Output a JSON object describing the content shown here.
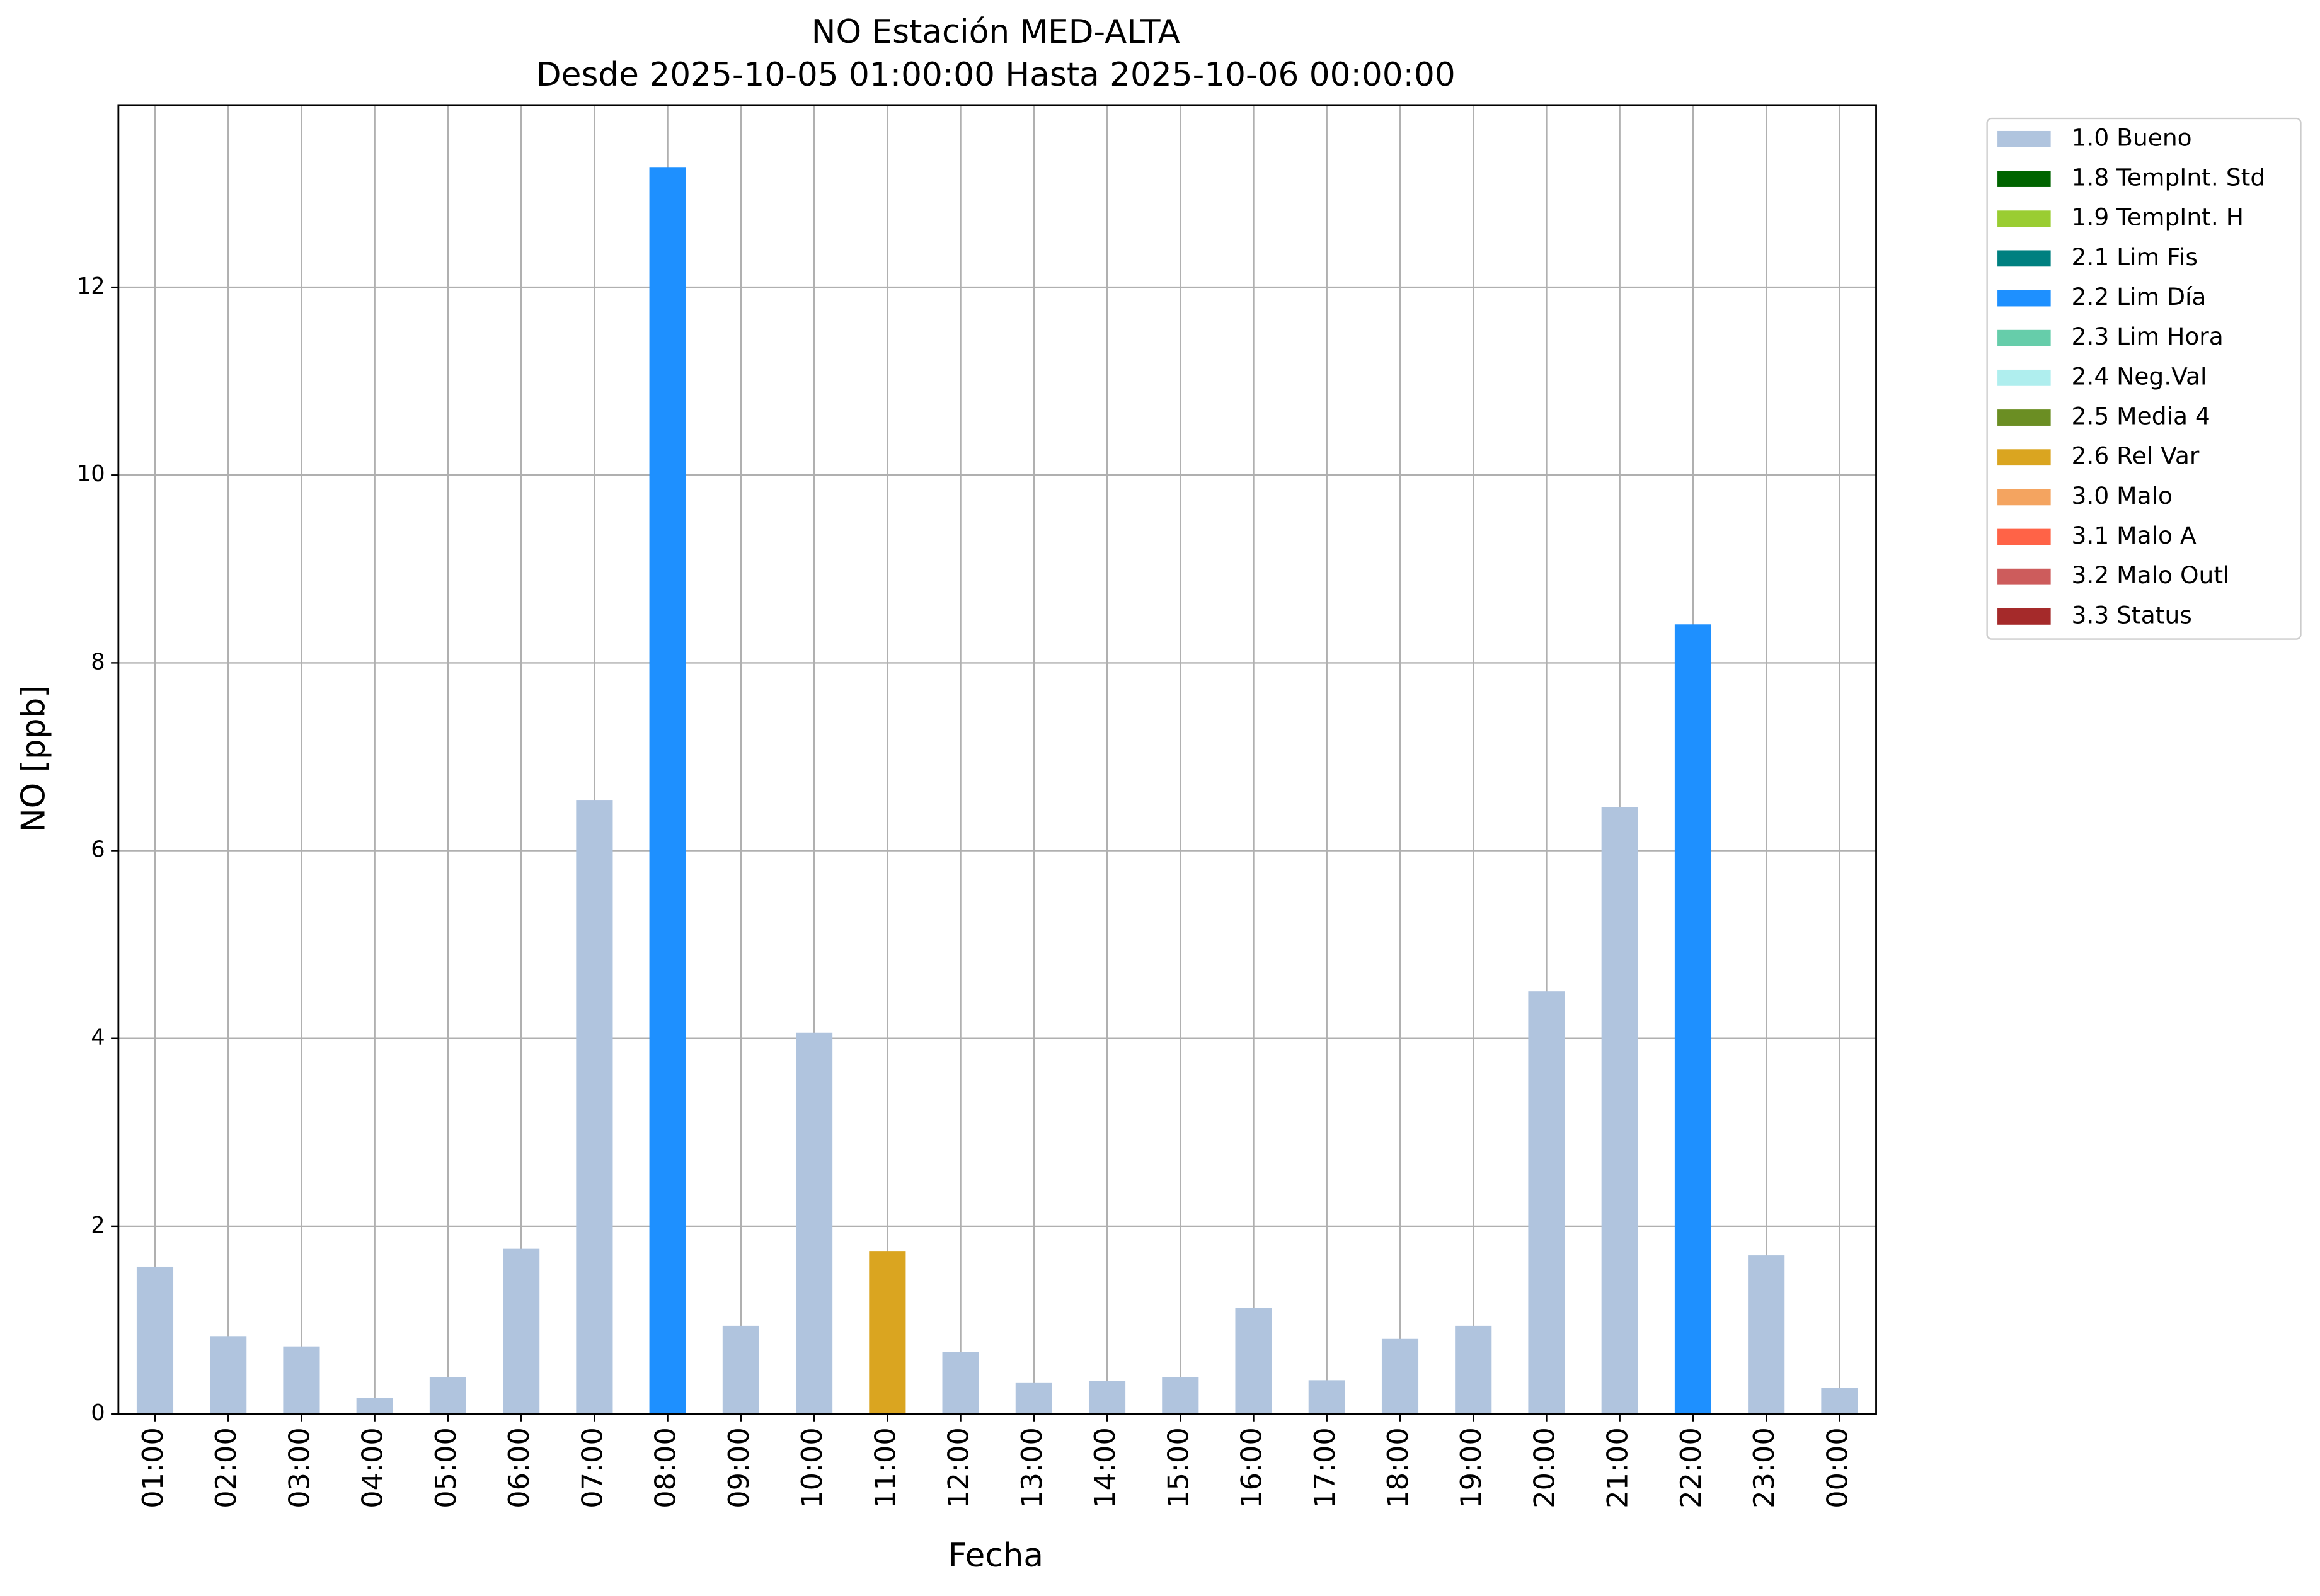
{
  "chart_data": {
    "type": "bar",
    "stacked": true,
    "title": "NO Estación MED-ALTA",
    "subtitle": "Desde 2025-10-05 01:00:00 Hasta 2025-10-06 00:00:00",
    "x_label": "Fecha",
    "y_label": "NO [ppb]",
    "categories": [
      "01:00",
      "02:00",
      "03:00",
      "04:00",
      "05:00",
      "06:00",
      "07:00",
      "08:00",
      "09:00",
      "10:00",
      "11:00",
      "12:00",
      "13:00",
      "14:00",
      "15:00",
      "16:00",
      "17:00",
      "18:00",
      "19:00",
      "20:00",
      "21:00",
      "22:00",
      "23:00",
      "00:00"
    ],
    "series": [
      {
        "name": "1.0 Bueno",
        "color": "#b0c4de",
        "values": [
          1.57,
          0.83,
          0.72,
          0.17,
          0.39,
          1.76,
          6.54,
          null,
          0.94,
          4.06,
          null,
          0.66,
          0.33,
          0.35,
          0.39,
          1.13,
          0.36,
          0.8,
          0.94,
          4.5,
          6.46,
          null,
          1.69,
          0.28
        ]
      },
      {
        "name": "1.8 TempInt. Std",
        "color": "#006400",
        "values": [
          null,
          null,
          null,
          null,
          null,
          null,
          null,
          null,
          null,
          null,
          null,
          null,
          null,
          null,
          null,
          null,
          null,
          null,
          null,
          null,
          null,
          null,
          null,
          null
        ]
      },
      {
        "name": "1.9 TempInt. H",
        "color": "#9acd32",
        "values": [
          null,
          null,
          null,
          null,
          null,
          null,
          null,
          null,
          null,
          null,
          null,
          null,
          null,
          null,
          null,
          null,
          null,
          null,
          null,
          null,
          null,
          null,
          null,
          null
        ]
      },
      {
        "name": "2.1 Lim Fis",
        "color": "#008080",
        "values": [
          null,
          null,
          null,
          null,
          null,
          null,
          null,
          null,
          null,
          null,
          null,
          null,
          null,
          null,
          null,
          null,
          null,
          null,
          null,
          null,
          null,
          null,
          null,
          null
        ]
      },
      {
        "name": "2.2 Lim Día",
        "color": "#1e90ff",
        "values": [
          null,
          null,
          null,
          null,
          null,
          null,
          null,
          13.28,
          null,
          null,
          null,
          null,
          null,
          null,
          null,
          null,
          null,
          null,
          null,
          null,
          null,
          8.41,
          null,
          null
        ]
      },
      {
        "name": "2.3 Lim Hora",
        "color": "#66cdaa",
        "values": [
          null,
          null,
          null,
          null,
          null,
          null,
          null,
          null,
          null,
          null,
          null,
          null,
          null,
          null,
          null,
          null,
          null,
          null,
          null,
          null,
          null,
          null,
          null,
          null
        ]
      },
      {
        "name": "2.4 Neg.Val",
        "color": "#afeeee",
        "values": [
          null,
          null,
          null,
          null,
          null,
          null,
          null,
          null,
          null,
          null,
          null,
          null,
          null,
          null,
          null,
          null,
          null,
          null,
          null,
          null,
          null,
          null,
          null,
          null
        ]
      },
      {
        "name": "2.5 Media 4",
        "color": "#6b8e23",
        "values": [
          null,
          null,
          null,
          null,
          null,
          null,
          null,
          null,
          null,
          null,
          null,
          null,
          null,
          null,
          null,
          null,
          null,
          null,
          null,
          null,
          null,
          null,
          null,
          null
        ]
      },
      {
        "name": "2.6 Rel Var",
        "color": "#daa520",
        "values": [
          null,
          null,
          null,
          null,
          null,
          null,
          null,
          null,
          null,
          null,
          1.73,
          null,
          null,
          null,
          null,
          null,
          null,
          null,
          null,
          null,
          null,
          null,
          null,
          null
        ]
      },
      {
        "name": "3.0 Malo",
        "color": "#f4a460",
        "values": [
          null,
          null,
          null,
          null,
          null,
          null,
          null,
          null,
          null,
          null,
          null,
          null,
          null,
          null,
          null,
          null,
          null,
          null,
          null,
          null,
          null,
          null,
          null,
          null
        ]
      },
      {
        "name": "3.1 Malo A",
        "color": "#ff6347",
        "values": [
          null,
          null,
          null,
          null,
          null,
          null,
          null,
          null,
          null,
          null,
          null,
          null,
          null,
          null,
          null,
          null,
          null,
          null,
          null,
          null,
          null,
          null,
          null,
          null
        ]
      },
      {
        "name": "3.2 Malo Outl",
        "color": "#cd5c5c",
        "values": [
          null,
          null,
          null,
          null,
          null,
          null,
          null,
          null,
          null,
          null,
          null,
          null,
          null,
          null,
          null,
          null,
          null,
          null,
          null,
          null,
          null,
          null,
          null,
          null
        ]
      },
      {
        "name": "3.3 Status",
        "color": "#a52a2a",
        "values": [
          null,
          null,
          null,
          null,
          null,
          null,
          null,
          null,
          null,
          null,
          null,
          null,
          null,
          null,
          null,
          null,
          null,
          null,
          null,
          null,
          null,
          null,
          null,
          null
        ]
      }
    ],
    "ylim": [
      0,
      13.94
    ],
    "yticks": [
      0,
      2,
      4,
      6,
      8,
      10,
      12
    ],
    "grid": true,
    "legend": "outside-right"
  }
}
